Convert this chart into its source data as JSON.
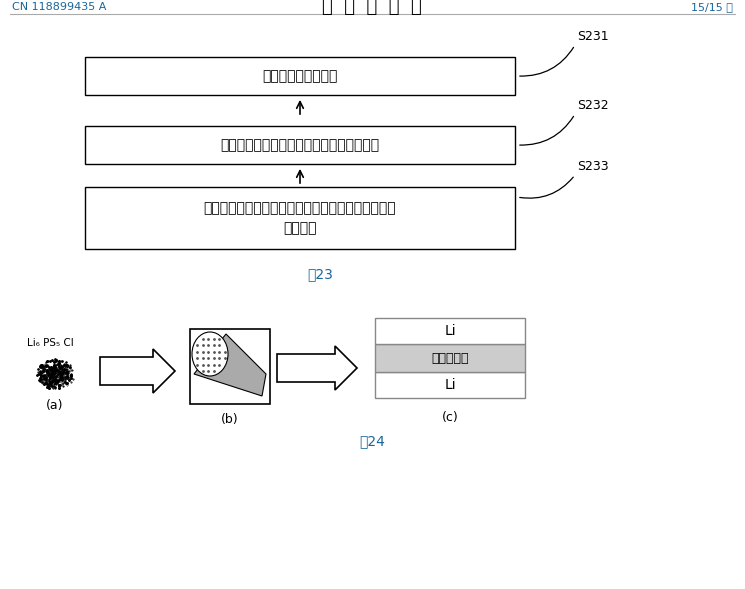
{
  "bg_color": "#ffffff",
  "header_left": "CN 118899435 A",
  "header_center": "说  明  书  附  图",
  "header_right": "15/15 页",
  "header_color": "#1a6699",
  "fig23_label": "图23",
  "fig24_label": "图24",
  "box1_text": "形成掺杂硫化物材料",
  "box2_text": "利用掺杂硫化物材料形成硫化物固态电解质",
  "box3_line1": "组装金属锤负极、硫化物固态电解质和正极，得到锤",
  "box3_line2": "离子电池",
  "s231": "S231",
  "s232": "S232",
  "s233": "S233",
  "label_a": "(a)",
  "label_b": "(b)",
  "label_c": "(c)",
  "li6_ps5_cl_line1": "Li₆ PS₅ Cl",
  "li_top": "Li",
  "solid_electrolyte": "固态电解质",
  "li_bot": "Li"
}
